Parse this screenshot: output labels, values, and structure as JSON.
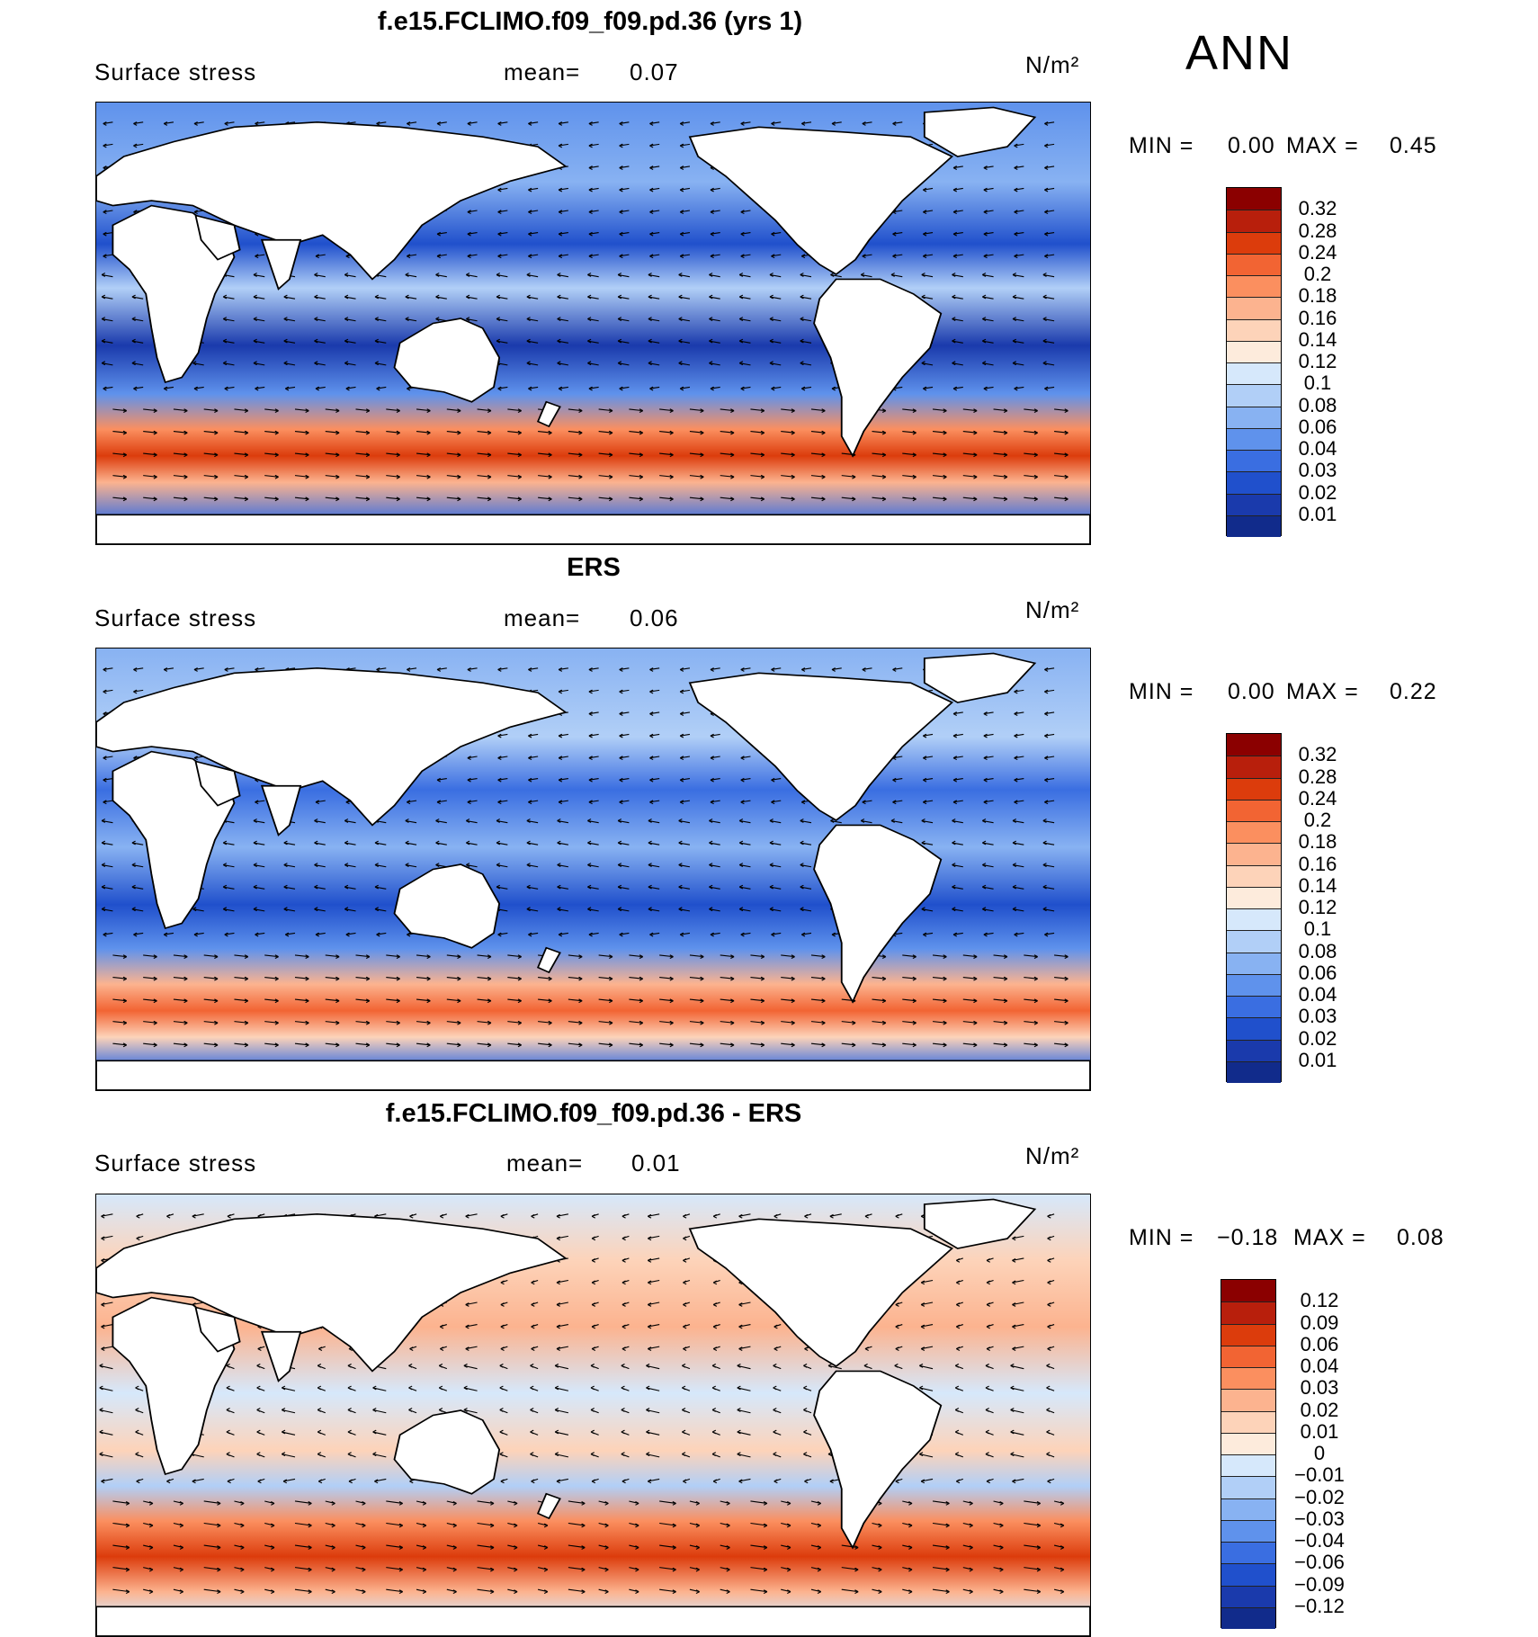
{
  "season": "ANN",
  "chart_data": [
    {
      "type": "heatmap",
      "title": "f.e15.FCLIMO.f09_f09.pd.36 (yrs 1)",
      "variable": "Surface stress",
      "mean_label": "mean=",
      "mean_value": "0.07",
      "units": "N/m²",
      "min_label": "MIN =",
      "min_value": "0.00",
      "max_label": "MAX =",
      "max_value": "0.45",
      "x_range": [
        0,
        360
      ],
      "y_range": [
        -90,
        90
      ],
      "colorbar": {
        "levels": [
          "0.32",
          "0.28",
          "0.24",
          "0.2",
          "0.18",
          "0.16",
          "0.14",
          "0.12",
          "0.1",
          "0.08",
          "0.06",
          "0.04",
          "0.03",
          "0.02",
          "0.01"
        ],
        "colors": [
          "#8b0000",
          "#b81f0c",
          "#dc3c0c",
          "#f26433",
          "#fb8f5f",
          "#fcb38f",
          "#fdd3b9",
          "#fdebdc",
          "#d6e8fb",
          "#b1cff7",
          "#88b2f2",
          "#5f92ec",
          "#3a6ee1",
          "#2050cc",
          "#1a3aac",
          "#112b8b"
        ]
      }
    },
    {
      "type": "heatmap",
      "title": "ERS",
      "variable": "Surface stress",
      "mean_label": "mean=",
      "mean_value": "0.06",
      "units": "N/m²",
      "min_label": "MIN =",
      "min_value": "0.00",
      "max_label": "MAX =",
      "max_value": "0.22",
      "x_range": [
        0,
        360
      ],
      "y_range": [
        -90,
        90
      ],
      "colorbar": {
        "levels": [
          "0.32",
          "0.28",
          "0.24",
          "0.2",
          "0.18",
          "0.16",
          "0.14",
          "0.12",
          "0.1",
          "0.08",
          "0.06",
          "0.04",
          "0.03",
          "0.02",
          "0.01"
        ],
        "colors": [
          "#8b0000",
          "#b81f0c",
          "#dc3c0c",
          "#f26433",
          "#fb8f5f",
          "#fcb38f",
          "#fdd3b9",
          "#fdebdc",
          "#d6e8fb",
          "#b1cff7",
          "#88b2f2",
          "#5f92ec",
          "#3a6ee1",
          "#2050cc",
          "#1a3aac",
          "#112b8b"
        ]
      }
    },
    {
      "type": "heatmap",
      "title": "f.e15.FCLIMO.f09_f09.pd.36 - ERS",
      "variable": "Surface stress",
      "mean_label": "mean=",
      "mean_value": "0.01",
      "units": "N/m²",
      "min_label": "MIN =",
      "min_value": "−0.18",
      "max_label": "MAX =",
      "max_value": "0.08",
      "x_range": [
        0,
        360
      ],
      "y_range": [
        -90,
        90
      ],
      "colorbar": {
        "levels": [
          "0.12",
          "0.09",
          "0.06",
          "0.04",
          "0.03",
          "0.02",
          "0.01",
          "0",
          "−0.01",
          "−0.02",
          "−0.03",
          "−0.04",
          "−0.06",
          "−0.09",
          "−0.12"
        ],
        "colors": [
          "#8b0000",
          "#b81f0c",
          "#dc3c0c",
          "#f26433",
          "#fb8f5f",
          "#fcb38f",
          "#fdd3b9",
          "#fdebdc",
          "#d6e8fb",
          "#b1cff7",
          "#88b2f2",
          "#5f92ec",
          "#3a6ee1",
          "#2050cc",
          "#1a3aac",
          "#112b8b"
        ]
      }
    }
  ]
}
